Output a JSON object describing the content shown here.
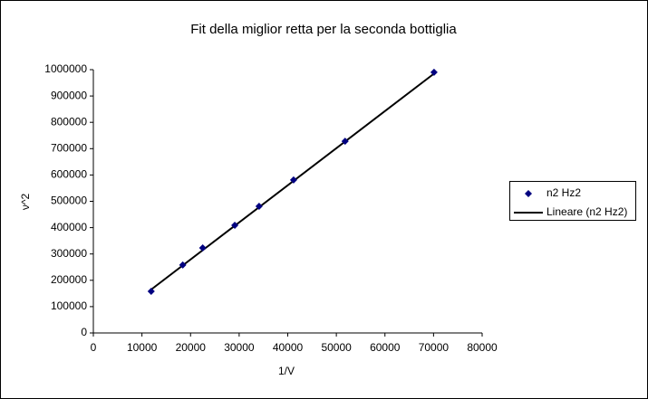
{
  "chart_data": {
    "type": "scatter",
    "title": "Fit della miglior retta per la seconda bottiglia",
    "x_label": "1/V",
    "y_label": "ν^2",
    "series": [
      {
        "name": "n2 Hz2",
        "color": "#000080",
        "marker": "diamond",
        "x": [
          11900,
          18400,
          22500,
          29100,
          34100,
          41200,
          51800,
          70100
        ],
        "values": [
          158000,
          258000,
          323000,
          409000,
          481000,
          581000,
          728000,
          990000
        ]
      },
      {
        "name": "Lineare (n2 Hz2)",
        "color": "#000000",
        "marker": "line",
        "x": [
          11900,
          70100
        ],
        "values": [
          165000,
          985000
        ]
      }
    ],
    "xlim": [
      0,
      80000
    ],
    "xticks": [
      0,
      10000,
      20000,
      30000,
      40000,
      50000,
      60000,
      70000,
      80000
    ],
    "ylim": [
      0,
      1000000
    ],
    "yticks": [
      0,
      100000,
      200000,
      300000,
      400000,
      500000,
      600000,
      700000,
      800000,
      900000,
      1000000
    ],
    "grid": false,
    "legend": "right"
  }
}
